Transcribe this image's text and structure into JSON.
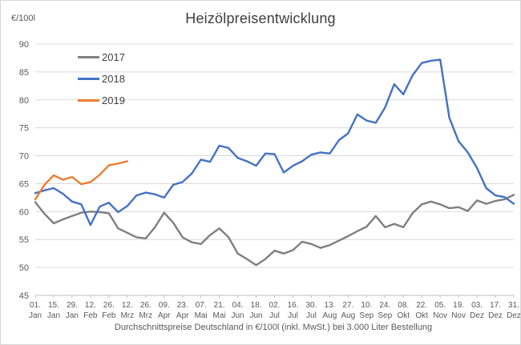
{
  "chart_data": {
    "type": "line",
    "title": "Heizölpreisentwicklung",
    "subtitle": "Durchschnittspreise Deutschland in €/100l (inkl. MwSt.) bei 3.000 Liter Bestellung",
    "ylabel": "€/100l",
    "xlabel": "",
    "ylim": [
      45,
      90
    ],
    "y_ticks": [
      45,
      50,
      55,
      60,
      65,
      70,
      75,
      80,
      85,
      90
    ],
    "grid": true,
    "legend_position": "upper-left-vertical",
    "x_tick_interval_days": 14,
    "x_tick_labels": [
      "01. Jan",
      "15. Jan",
      "29. Jan",
      "12. Feb",
      "26. Feb",
      "12. Mrz",
      "26. Mrz",
      "09. Apr",
      "23. Apr",
      "07. Mai",
      "21. Mai",
      "04. Jun",
      "18. Jun",
      "02. Jul",
      "16. Jul",
      "30. Jul",
      "13. Aug",
      "27. Aug",
      "10. Sep",
      "24. Sep",
      "08. Okt",
      "22. Okt",
      "05. Nov",
      "19. Nov",
      "03. Dez",
      "17. Dez",
      "31. Dez"
    ],
    "x_range_days": [
      0,
      364
    ],
    "series": [
      {
        "name": "2017",
        "color": "#7f7f7f",
        "x_day_of_year": [
          0,
          7,
          14,
          21,
          28,
          35,
          42,
          49,
          56,
          63,
          70,
          77,
          84,
          91,
          98,
          105,
          112,
          119,
          126,
          133,
          140,
          147,
          154,
          161,
          168,
          175,
          182,
          189,
          196,
          203,
          210,
          217,
          224,
          231,
          238,
          245,
          252,
          259,
          266,
          273,
          280,
          287,
          294,
          301,
          308,
          315,
          322,
          329,
          336,
          343,
          350,
          357,
          364
        ],
        "values": [
          61.7,
          59.6,
          57.9,
          58.6,
          59.2,
          59.8,
          60.0,
          59.9,
          59.7,
          57.0,
          56.2,
          55.4,
          55.2,
          57.2,
          59.8,
          58.0,
          55.4,
          54.5,
          54.2,
          55.8,
          57.0,
          55.4,
          52.5,
          51.5,
          50.4,
          51.5,
          53.0,
          52.5,
          53.1,
          54.6,
          54.2,
          53.5,
          54.0,
          54.8,
          55.6,
          56.5,
          57.3,
          59.2,
          57.2,
          57.8,
          57.2,
          59.7,
          61.3,
          61.8,
          61.3,
          60.6,
          60.8,
          60.1,
          62.0,
          61.4,
          61.9,
          62.2,
          63.0
        ]
      },
      {
        "name": "2018",
        "color": "#4472c4",
        "x_day_of_year": [
          0,
          7,
          14,
          21,
          28,
          35,
          42,
          49,
          56,
          63,
          70,
          77,
          84,
          91,
          98,
          105,
          112,
          119,
          126,
          133,
          140,
          147,
          154,
          161,
          168,
          175,
          182,
          189,
          196,
          203,
          210,
          217,
          224,
          231,
          238,
          245,
          252,
          259,
          266,
          273,
          280,
          287,
          294,
          301,
          308,
          315,
          322,
          329,
          336,
          343,
          350,
          357,
          364
        ],
        "values": [
          63.3,
          63.8,
          64.2,
          63.2,
          61.8,
          61.3,
          57.6,
          60.9,
          61.6,
          59.9,
          61.0,
          62.9,
          63.4,
          63.1,
          62.5,
          64.8,
          65.3,
          66.8,
          69.3,
          68.9,
          71.8,
          71.4,
          69.6,
          69.0,
          68.2,
          70.4,
          70.3,
          67.0,
          68.2,
          69.0,
          70.2,
          70.6,
          70.4,
          72.8,
          74.0,
          77.4,
          76.3,
          75.9,
          78.6,
          82.8,
          81.0,
          84.4,
          86.6,
          87.0,
          87.2,
          76.8,
          72.6,
          70.6,
          67.8,
          64.2,
          62.9,
          62.6,
          61.4
        ]
      },
      {
        "name": "2019",
        "color": "#ed7d31",
        "x_day_of_year": [
          0,
          7,
          14,
          21,
          28,
          35,
          42,
          49,
          56,
          63,
          70
        ],
        "values": [
          62.2,
          64.8,
          66.5,
          65.7,
          66.2,
          64.9,
          65.3,
          66.6,
          68.3,
          68.6,
          69.0
        ]
      }
    ],
    "colors": {
      "gridline": "#d9d9d9",
      "axis_line": "#bfbfbf",
      "tick_label": "#595959",
      "title_text": "#3f3f3f"
    }
  }
}
